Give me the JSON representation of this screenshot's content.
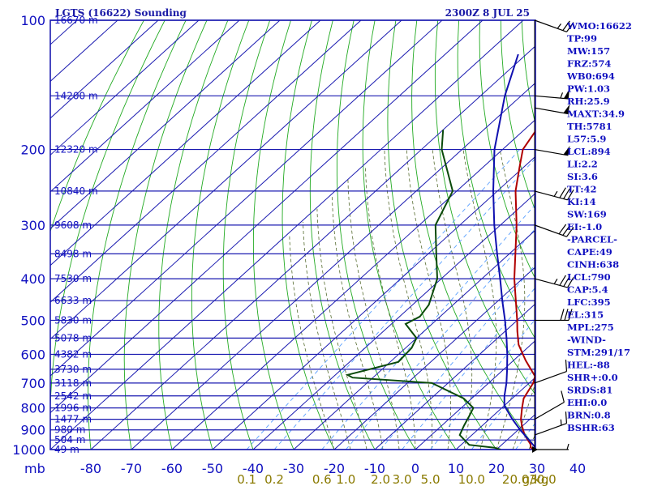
{
  "header": {
    "station_label": "LGTS (16622) Sounding",
    "time_label": "2300Z  8 JUL 25"
  },
  "chart_data": {
    "type": "line",
    "title": "LGTS (16622) Sounding",
    "subtitle": "2300Z  8 JUL 25",
    "xlabel": "",
    "ylabel": "mb",
    "x_scale": "skew-T",
    "y_scale": "log",
    "ylim": [
      1000,
      100
    ],
    "xlim": [
      -80,
      40
    ],
    "grid": true,
    "pressure_ticks": [
      "100",
      "200",
      "300",
      "400",
      "500",
      "600",
      "700",
      "800",
      "900",
      "1000"
    ],
    "pressure_axis_label": "mb",
    "temperature_ticks": [
      "-80",
      "-70",
      "-60",
      "-50",
      "-40",
      "-30",
      "-20",
      "-10",
      "0",
      "10",
      "20",
      "30",
      "40"
    ],
    "mixing_ratio_ticks": [
      "0.1",
      "0.2",
      "0.6",
      "1.0",
      "2.0",
      "3.0",
      "5.0",
      "10.0",
      "20.0",
      "30.0",
      "g/kg"
    ],
    "height_labels": [
      {
        "p": 100,
        "label": "16670 m"
      },
      {
        "p": 150,
        "label": "14200 m"
      },
      {
        "p": 200,
        "label": "12320 m"
      },
      {
        "p": 250,
        "label": "10840 m"
      },
      {
        "p": 300,
        "label": "9608 m"
      },
      {
        "p": 350,
        "label": "8498 m"
      },
      {
        "p": 400,
        "label": "7530 m"
      },
      {
        "p": 450,
        "label": "6633 m"
      },
      {
        "p": 500,
        "label": "5830 m"
      },
      {
        "p": 550,
        "label": "5078 m"
      },
      {
        "p": 600,
        "label": "4382 m"
      },
      {
        "p": 650,
        "label": "3730 m"
      },
      {
        "p": 700,
        "label": "3118 m"
      },
      {
        "p": 750,
        "label": "2542 m"
      },
      {
        "p": 800,
        "label": "1996 m"
      },
      {
        "p": 850,
        "label": "1477 m"
      },
      {
        "p": 900,
        "label": "980 m"
      },
      {
        "p": 950,
        "label": "504 m"
      },
      {
        "p": 1000,
        "label": "49 m"
      }
    ],
    "series": [
      {
        "kind": "temperature",
        "color": "#b00000",
        "points": [
          {
            "p": 1000,
            "t": 29.4
          },
          {
            "p": 992,
            "t": 28.2
          },
          {
            "p": 990,
            "t": 28.0
          },
          {
            "p": 970,
            "t": 26.8
          },
          {
            "p": 925,
            "t": 23.0
          },
          {
            "p": 880,
            "t": 19.8
          },
          {
            "p": 850,
            "t": 17.8
          },
          {
            "p": 800,
            "t": 15.0
          },
          {
            "p": 760,
            "t": 12.8
          },
          {
            "p": 700,
            "t": 11.0
          },
          {
            "p": 675,
            "t": 9.6
          },
          {
            "p": 620,
            "t": 3.0
          },
          {
            "p": 570,
            "t": -3.0
          },
          {
            "p": 530,
            "t": -7.0
          },
          {
            "p": 500,
            "t": -10.0
          },
          {
            "p": 400,
            "t": -22.0
          },
          {
            "p": 300,
            "t": -36.0
          },
          {
            "p": 250,
            "t": -45.5
          },
          {
            "p": 220,
            "t": -51.0
          },
          {
            "p": 200,
            "t": -55.0
          },
          {
            "p": 180,
            "t": -57.0
          },
          {
            "p": 150,
            "t": -61.0
          },
          {
            "p": 120,
            "t": -64.0
          },
          {
            "p": 100,
            "t": -68.0
          }
        ]
      },
      {
        "kind": "dewpoint",
        "color": "#0a4a0a",
        "points": [
          {
            "p": 1000,
            "td": 21.0
          },
          {
            "p": 990,
            "td": 19.0
          },
          {
            "p": 975,
            "td": 12.0
          },
          {
            "p": 925,
            "td": 7.0
          },
          {
            "p": 880,
            "td": 5.5
          },
          {
            "p": 830,
            "td": 4.0
          },
          {
            "p": 800,
            "td": 3.0
          },
          {
            "p": 760,
            "td": -2.0
          },
          {
            "p": 700,
            "td": -14.0
          },
          {
            "p": 680,
            "td": -35.0
          },
          {
            "p": 670,
            "td": -37.0
          },
          {
            "p": 625,
            "td": -28.0
          },
          {
            "p": 580,
            "td": -28.5
          },
          {
            "p": 550,
            "td": -30.0
          },
          {
            "p": 510,
            "td": -36.5
          },
          {
            "p": 490,
            "td": -35.0
          },
          {
            "p": 460,
            "td": -36.0
          },
          {
            "p": 400,
            "td": -41.0
          },
          {
            "p": 350,
            "td": -48.0
          },
          {
            "p": 300,
            "td": -56.0
          },
          {
            "p": 250,
            "td": -61.0
          },
          {
            "p": 200,
            "td": -75.0
          },
          {
            "p": 180,
            "td": -80.0
          }
        ]
      },
      {
        "kind": "parcel",
        "color": "#1010b0",
        "points": [
          {
            "p": 1000,
            "t": 30.0
          },
          {
            "p": 950,
            "t": 25.4
          },
          {
            "p": 900,
            "t": 20.5
          },
          {
            "p": 850,
            "t": 15.7
          },
          {
            "p": 790,
            "t": 10.0
          },
          {
            "p": 750,
            "t": 7.4
          },
          {
            "p": 700,
            "t": 4.4
          },
          {
            "p": 650,
            "t": 0.8
          },
          {
            "p": 600,
            "t": -3.2
          },
          {
            "p": 550,
            "t": -7.8
          },
          {
            "p": 500,
            "t": -13.0
          },
          {
            "p": 450,
            "t": -19.0
          },
          {
            "p": 400,
            "t": -25.5
          },
          {
            "p": 350,
            "t": -33.0
          },
          {
            "p": 300,
            "t": -41.5
          },
          {
            "p": 250,
            "t": -51.0
          },
          {
            "p": 200,
            "t": -62.0
          },
          {
            "p": 150,
            "t": -74.0
          },
          {
            "p": 120,
            "t": -82.0
          }
        ]
      }
    ],
    "wind_barbs": [
      {
        "p": 100,
        "dir": 250,
        "speed_kt": 25
      },
      {
        "p": 150,
        "dir": 265,
        "speed_kt": 55
      },
      {
        "p": 160,
        "dir": 260,
        "speed_kt": 50
      },
      {
        "p": 200,
        "dir": 260,
        "speed_kt": 50
      },
      {
        "p": 250,
        "dir": 255,
        "speed_kt": 35
      },
      {
        "p": 300,
        "dir": 250,
        "speed_kt": 30
      },
      {
        "p": 400,
        "dir": 255,
        "speed_kt": 35
      },
      {
        "p": 500,
        "dir": 270,
        "speed_kt": 30
      },
      {
        "p": 700,
        "dir": 290,
        "speed_kt": 10
      },
      {
        "p": 850,
        "dir": 300,
        "speed_kt": 10
      },
      {
        "p": 925,
        "dir": 290,
        "speed_kt": 15
      },
      {
        "p": 1000,
        "dir": 270,
        "speed_kt": 5
      }
    ]
  },
  "indices": [
    "WMO:16622",
    "TP:99",
    "MW:157",
    "FRZ:574",
    "WB0:694",
    "PW:1.03",
    "RH:25.9",
    "MAXT:34.9",
    "TH:5781",
    "L57:5.9",
    "LCL:894",
    "LI:2.2",
    "SI:3.6",
    "TT:42",
    "KI:14",
    "SW:169",
    "EI:-1.0",
    "-PARCEL-",
    "CAPE:49",
    "CINH:638",
    "LCL:790",
    "CAP:5.4",
    "LFC:395",
    "EL:315",
    "MPL:275",
    "-WIND-",
    "STM:291/17",
    "HEL:-88",
    "SHR+:0.0",
    "SRDS:81",
    "EHI:0.0",
    "BRN:0.8",
    "BSHR:63"
  ],
  "colors": {
    "isobar": "#1a1ab0",
    "isotherm": "#1a1ab0",
    "dry_adiabat": "#22aa22",
    "moist_adiabat": "#556b2f",
    "mixing_ratio": "#5aa0ff",
    "temperature": "#b00000",
    "dewpoint": "#0a4a0a",
    "parcel": "#1010b0"
  }
}
